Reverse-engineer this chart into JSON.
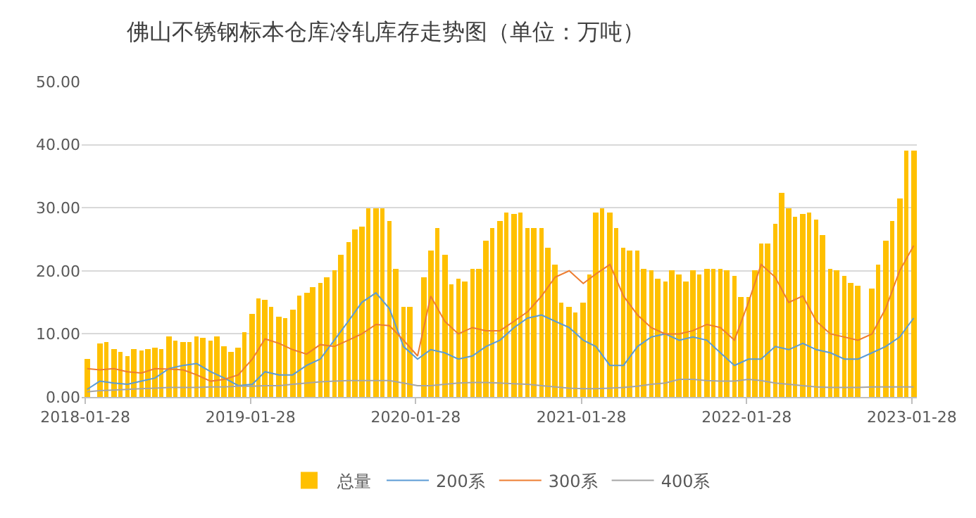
{
  "chart_data": {
    "type": "bar",
    "title": "佛山不锈钢标本仓库冷轧库存走势图（单位：万吨）",
    "x": [
      "2018-02-01",
      "2018-02-15",
      "2018-03-01",
      "2018-03-15",
      "2018-04-01",
      "2018-04-15",
      "2018-05-01",
      "2018-05-15",
      "2018-06-01",
      "2018-06-15",
      "2018-07-01",
      "2018-07-15",
      "2018-08-01",
      "2018-08-15",
      "2018-09-01",
      "2018-09-15",
      "2018-10-01",
      "2018-10-15",
      "2018-11-01",
      "2018-11-15",
      "2018-12-01",
      "2018-12-15",
      "2019-01-01",
      "2019-01-15",
      "2019-02-01",
      "2019-02-15",
      "2019-03-01",
      "2019-03-15",
      "2019-04-01",
      "2019-04-15",
      "2019-05-01",
      "2019-05-15",
      "2019-06-01",
      "2019-06-15",
      "2019-07-01",
      "2019-07-15",
      "2019-08-01",
      "2019-08-15",
      "2019-09-01",
      "2019-09-15",
      "2019-10-01",
      "2019-10-15",
      "2019-11-01",
      "2019-11-15",
      "2019-12-01",
      "2019-12-15",
      "2020-01-01",
      "2020-01-15",
      "2020-02-01",
      "2020-02-15",
      "2020-03-01",
      "2020-03-15",
      "2020-04-01",
      "2020-04-15",
      "2020-05-01",
      "2020-05-15",
      "2020-06-01",
      "2020-06-15",
      "2020-07-01",
      "2020-07-15",
      "2020-08-01",
      "2020-08-15",
      "2020-09-01",
      "2020-09-15",
      "2020-10-01",
      "2020-10-15",
      "2020-11-01",
      "2020-11-15",
      "2020-12-01",
      "2020-12-15",
      "2021-01-01",
      "2021-01-15",
      "2021-02-01",
      "2021-02-15",
      "2021-03-01",
      "2021-03-15",
      "2021-04-01",
      "2021-04-15",
      "2021-05-01",
      "2021-05-15",
      "2021-06-01",
      "2021-06-15",
      "2021-07-01",
      "2021-07-15",
      "2021-08-01",
      "2021-08-15",
      "2021-09-01",
      "2021-09-15",
      "2021-10-01",
      "2021-10-15",
      "2021-11-01",
      "2021-11-15",
      "2021-12-01",
      "2021-12-15",
      "2022-01-01",
      "2022-01-15",
      "2022-02-01",
      "2022-02-15",
      "2022-03-01",
      "2022-03-15",
      "2022-04-01",
      "2022-04-15",
      "2022-05-01",
      "2022-05-15",
      "2022-06-01",
      "2022-06-15",
      "2022-07-01",
      "2022-07-15",
      "2022-08-01",
      "2022-08-15",
      "2022-09-01",
      "2022-09-15",
      "2022-10-01",
      "2022-10-15",
      "2022-11-01",
      "2022-11-15",
      "2022-12-01",
      "2022-12-15",
      "2023-01-01",
      "2023-01-15",
      "2023-02-01"
    ],
    "series": [
      {
        "name": "总量",
        "color": "#ffc000",
        "values": [
          6,
          null,
          8.5,
          8.7,
          7.5,
          7.1,
          6.4,
          7.7,
          7.3,
          7.7,
          7.9,
          7.7,
          9.6,
          9,
          8.7,
          8.7,
          9.5,
          9.4,
          9,
          9.5,
          8,
          7.1,
          7.9,
          10.3,
          13.2,
          15.6,
          15.3,
          14.3,
          12.8,
          12.4,
          13.9,
          16,
          16.5,
          17.5,
          18,
          19,
          20,
          22.5,
          24.5,
          26.5,
          27,
          30,
          30,
          30,
          28,
          20.3,
          14.3,
          14.3,
          null,
          19,
          23.3,
          26.8,
          22.5,
          17.8,
          18.8,
          18.4,
          20.3,
          20.3,
          24.8,
          26.7,
          27.8,
          29.3,
          29,
          29.3,
          26.7,
          26.7,
          26.7,
          23.7,
          21,
          15,
          14.3,
          13.5,
          15,
          19.5,
          29.3,
          30,
          29.3,
          26.7,
          23.7,
          23.3,
          23.3,
          20.3,
          20,
          18.8,
          18.4,
          20,
          19.5,
          18.4,
          20,
          19.5,
          20.3,
          20.3,
          20.3,
          20,
          19.1,
          15.8,
          15.8,
          20,
          24.4,
          24.4,
          27.4,
          32.3,
          30,
          28.6,
          29,
          29.3,
          28.2,
          25.6,
          20.3,
          20,
          19.2,
          18,
          17.7,
          null,
          17.3,
          21,
          24.8,
          27.8,
          31.5,
          39,
          39
        ]
      },
      {
        "name": "200系",
        "type": "line",
        "color": "#5b9bd5",
        "x": [
          "2018-02-01",
          "2018-03-01",
          "2018-04-01",
          "2018-05-01",
          "2018-06-01",
          "2018-07-01",
          "2018-08-01",
          "2018-09-01",
          "2018-10-01",
          "2018-11-01",
          "2018-12-01",
          "2019-01-01",
          "2019-02-01",
          "2019-03-01",
          "2019-04-01",
          "2019-05-01",
          "2019-06-01",
          "2019-07-01",
          "2019-08-01",
          "2019-09-01",
          "2019-10-01",
          "2019-11-01",
          "2019-12-01",
          "2020-01-01",
          "2020-02-01",
          "2020-03-01",
          "2020-04-01",
          "2020-05-01",
          "2020-06-01",
          "2020-07-01",
          "2020-08-01",
          "2020-09-01",
          "2020-10-01",
          "2020-11-01",
          "2020-12-01",
          "2021-01-01",
          "2021-02-01",
          "2021-03-01",
          "2021-04-01",
          "2021-05-01",
          "2021-06-01",
          "2021-07-01",
          "2021-08-01",
          "2021-09-01",
          "2021-10-01",
          "2021-11-01",
          "2021-12-01",
          "2022-01-01",
          "2022-02-01",
          "2022-03-01",
          "2022-04-01",
          "2022-05-01",
          "2022-06-01",
          "2022-07-01",
          "2022-08-01",
          "2022-09-01",
          "2022-10-01",
          "2022-11-01",
          "2022-12-01",
          "2023-01-01",
          "2023-02-01"
        ],
        "values": [
          1.2,
          2.5,
          2.2,
          2,
          2.5,
          3,
          4.5,
          5,
          5.3,
          4,
          3,
          1.8,
          2,
          4,
          3.5,
          3.5,
          5,
          6,
          9,
          12,
          15,
          16.5,
          14,
          8,
          6,
          7.5,
          7,
          6,
          6.5,
          8,
          9,
          11,
          12.5,
          13,
          12,
          11,
          9,
          8,
          5,
          5,
          8,
          9.5,
          10,
          9,
          9.5,
          9,
          7,
          5,
          6,
          6,
          8,
          7.5,
          8.5,
          7.5,
          7,
          6,
          6,
          7,
          8,
          9.5,
          12.5
        ]
      },
      {
        "name": "300系",
        "type": "line",
        "color": "#ed7d31",
        "x": [
          "2018-02-01",
          "2018-03-01",
          "2018-04-01",
          "2018-05-01",
          "2018-06-01",
          "2018-07-01",
          "2018-08-01",
          "2018-09-01",
          "2018-10-01",
          "2018-11-01",
          "2018-12-01",
          "2019-01-01",
          "2019-02-01",
          "2019-03-01",
          "2019-04-01",
          "2019-05-01",
          "2019-06-01",
          "2019-07-01",
          "2019-08-01",
          "2019-09-01",
          "2019-10-01",
          "2019-11-01",
          "2019-12-01",
          "2020-01-01",
          "2020-02-01",
          "2020-03-01",
          "2020-04-01",
          "2020-05-01",
          "2020-06-01",
          "2020-07-01",
          "2020-08-01",
          "2020-09-01",
          "2020-10-01",
          "2020-11-01",
          "2020-12-01",
          "2021-01-01",
          "2021-02-01",
          "2021-03-01",
          "2021-04-01",
          "2021-05-01",
          "2021-06-01",
          "2021-07-01",
          "2021-08-01",
          "2021-09-01",
          "2021-10-01",
          "2021-11-01",
          "2021-12-01",
          "2022-01-01",
          "2022-02-01",
          "2022-03-01",
          "2022-04-01",
          "2022-05-01",
          "2022-06-01",
          "2022-07-01",
          "2022-08-01",
          "2022-09-01",
          "2022-10-01",
          "2022-11-01",
          "2022-12-01",
          "2023-01-01",
          "2023-02-01"
        ],
        "values": [
          4.5,
          4.3,
          4.5,
          4,
          3.8,
          4.5,
          4.4,
          4.3,
          3.5,
          2.5,
          2.8,
          3.5,
          6,
          9.2,
          8.5,
          7.5,
          6.8,
          8.3,
          8,
          9,
          10,
          11.5,
          11.3,
          9,
          6.5,
          16,
          12,
          10,
          11,
          10.5,
          10.5,
          12,
          13.5,
          16,
          19,
          20,
          18,
          19.5,
          21,
          16,
          13,
          11,
          10,
          10,
          10.5,
          11.5,
          11,
          9,
          15,
          21,
          19,
          15,
          16,
          12,
          10,
          9.5,
          9,
          10,
          14,
          20,
          24
        ]
      },
      {
        "name": "400系",
        "type": "line",
        "color": "#a5a5a5",
        "x": [
          "2018-02-01",
          "2018-03-01",
          "2018-04-01",
          "2018-05-01",
          "2018-06-01",
          "2018-07-01",
          "2018-08-01",
          "2018-09-01",
          "2018-10-01",
          "2018-11-01",
          "2018-12-01",
          "2019-01-01",
          "2019-02-01",
          "2019-03-01",
          "2019-04-01",
          "2019-05-01",
          "2019-06-01",
          "2019-07-01",
          "2019-08-01",
          "2019-09-01",
          "2019-10-01",
          "2019-11-01",
          "2019-12-01",
          "2020-01-01",
          "2020-02-01",
          "2020-03-01",
          "2020-04-01",
          "2020-05-01",
          "2020-06-01",
          "2020-07-01",
          "2020-08-01",
          "2020-09-01",
          "2020-10-01",
          "2020-11-01",
          "2020-12-01",
          "2021-01-01",
          "2021-02-01",
          "2021-03-01",
          "2021-04-01",
          "2021-05-01",
          "2021-06-01",
          "2021-07-01",
          "2021-08-01",
          "2021-09-01",
          "2021-10-01",
          "2021-11-01",
          "2021-12-01",
          "2022-01-01",
          "2022-02-01",
          "2022-03-01",
          "2022-04-01",
          "2022-05-01",
          "2022-06-01",
          "2022-07-01",
          "2022-08-01",
          "2022-09-01",
          "2022-10-01",
          "2022-11-01",
          "2022-12-01",
          "2023-01-01",
          "2023-02-01"
        ],
        "values": [
          0.8,
          1,
          1.1,
          1.2,
          1.3,
          1.4,
          1.5,
          1.5,
          1.5,
          1.6,
          1.6,
          1.7,
          1.7,
          1.8,
          1.8,
          2,
          2.2,
          2.4,
          2.5,
          2.6,
          2.6,
          2.6,
          2.6,
          2.2,
          1.8,
          1.8,
          2,
          2.2,
          2.3,
          2.3,
          2.2,
          2.1,
          2,
          1.8,
          1.6,
          1.4,
          1.3,
          1.3,
          1.4,
          1.5,
          1.7,
          2,
          2.2,
          2.8,
          2.8,
          2.6,
          2.5,
          2.5,
          2.8,
          2.6,
          2.2,
          2,
          1.8,
          1.6,
          1.5,
          1.5,
          1.5,
          1.6,
          1.6,
          1.6,
          1.6
        ]
      }
    ],
    "xlim": [
      "2018-01-20",
      "2023-02-08"
    ],
    "xticks": [
      "2018-01-28",
      "2019-01-28",
      "2020-01-28",
      "2021-01-28",
      "2022-01-28",
      "2023-01-28"
    ],
    "ylim": [
      0,
      50
    ],
    "yticks": [
      {
        "value": 0,
        "label": "0.00"
      },
      {
        "value": 10,
        "label": "10.00"
      },
      {
        "value": 20,
        "label": "20.00"
      },
      {
        "value": 30,
        "label": "30.00"
      },
      {
        "value": 40,
        "label": "40.00"
      },
      {
        "value": 50,
        "label": "50.00"
      }
    ],
    "grid": "y",
    "legend": "bottom",
    "marker": "none",
    "line_style": "solid"
  }
}
